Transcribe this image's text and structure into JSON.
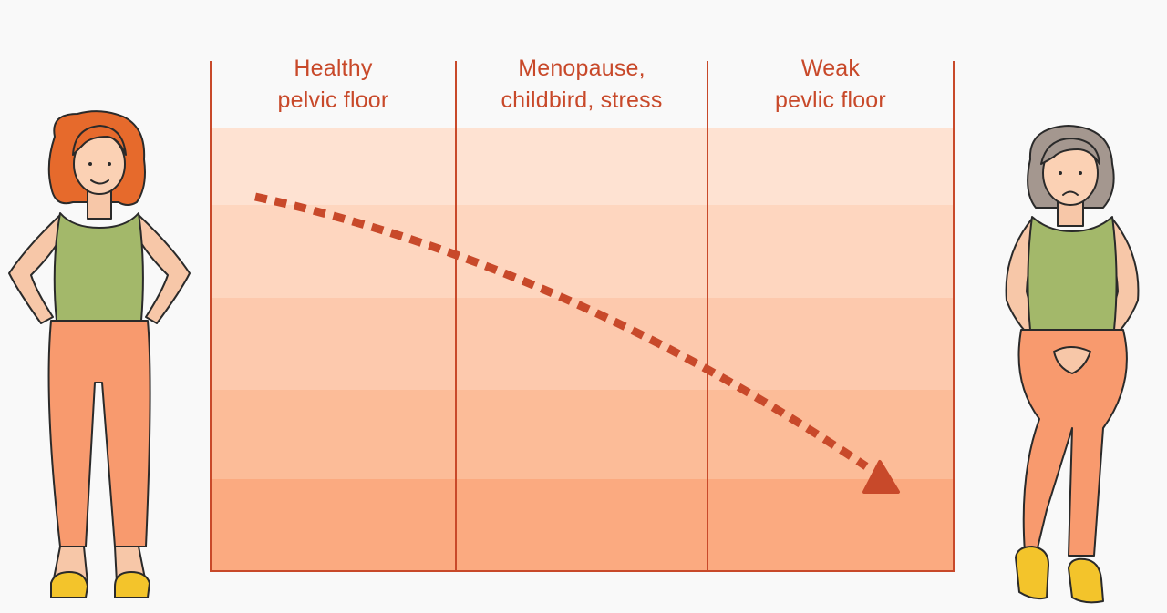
{
  "columns": [
    {
      "line1": "Healthy",
      "line2": "pelvic floor"
    },
    {
      "line1": "Menopause,",
      "line2": "childbird, stress"
    },
    {
      "line1": "Weak",
      "line2": "pevlic floor"
    }
  ],
  "colors": {
    "accent": "#c8492a",
    "band_1": "#fee2d2",
    "band_2": "#fed6bf",
    "band_3": "#fdc9ad",
    "band_4": "#fcbc98",
    "band_5": "#fbaa80",
    "background": "#f9f9f9"
  },
  "illustrations": {
    "left_figure": "healthy-woman-illustration",
    "right_figure": "older-woman-illustration"
  },
  "arrow": {
    "style": "dotted",
    "direction": "descending"
  }
}
